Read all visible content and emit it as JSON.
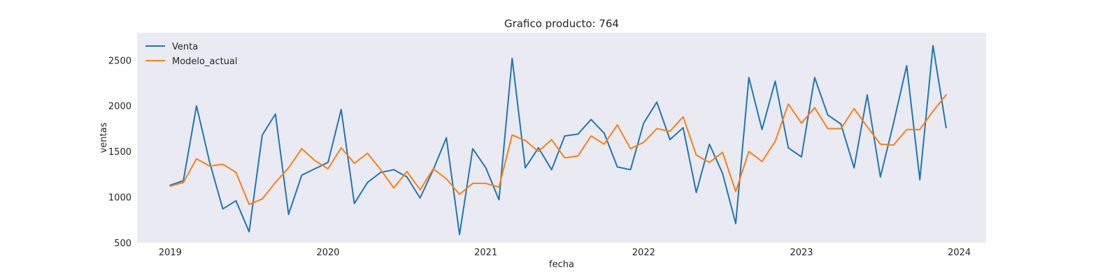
{
  "chart_data": {
    "type": "line",
    "title": "Grafico producto: 764",
    "xlabel": "fecha",
    "ylabel": "ventas",
    "x_start": "2019-01",
    "x_ticks": [
      {
        "year": 2019,
        "label": "2019"
      },
      {
        "year": 2020,
        "label": "2020"
      },
      {
        "year": 2021,
        "label": "2021"
      },
      {
        "year": 2022,
        "label": "2022"
      },
      {
        "year": 2023,
        "label": "2023"
      },
      {
        "year": 2024,
        "label": "2024"
      }
    ],
    "xlim": [
      2018.79,
      2024.17
    ],
    "ylim": [
      500,
      2800
    ],
    "y_ticks": [
      {
        "value": 500,
        "label": "500"
      },
      {
        "value": 1000,
        "label": "1000"
      },
      {
        "value": 1500,
        "label": "1500"
      },
      {
        "value": 2000,
        "label": "2000"
      },
      {
        "value": 2500,
        "label": "2500"
      }
    ],
    "legend_position": "top-left",
    "background": "#eaeaf2",
    "series": [
      {
        "name": "Venta",
        "color": "#1f77b4",
        "values": [
          1130,
          1180,
          2000,
          1380,
          870,
          960,
          620,
          1680,
          1910,
          810,
          1240,
          1310,
          1380,
          1960,
          930,
          1160,
          1270,
          1300,
          1220,
          990,
          1300,
          1650,
          590,
          1530,
          1320,
          970,
          2520,
          1320,
          1540,
          1300,
          1670,
          1690,
          1850,
          1700,
          1330,
          1300,
          1810,
          2040,
          1630,
          1760,
          1050,
          1580,
          1260,
          710,
          2310,
          1740,
          2270,
          1540,
          1440,
          2310,
          1900,
          1800,
          1320,
          2120,
          1220,
          1810,
          2440,
          1190,
          2660,
          1760
        ]
      },
      {
        "name": "Modelo_actual",
        "color": "#ff7f0e",
        "values": [
          1120,
          1160,
          1420,
          1340,
          1360,
          1270,
          920,
          980,
          1160,
          1320,
          1530,
          1400,
          1310,
          1540,
          1370,
          1480,
          1300,
          1100,
          1280,
          1080,
          1310,
          1200,
          1030,
          1150,
          1150,
          1110,
          1680,
          1620,
          1500,
          1630,
          1430,
          1450,
          1670,
          1580,
          1790,
          1530,
          1600,
          1750,
          1720,
          1880,
          1460,
          1380,
          1490,
          1060,
          1500,
          1390,
          1610,
          2020,
          1810,
          1980,
          1750,
          1750,
          1970,
          1770,
          1580,
          1570,
          1740,
          1740,
          1940,
          2120
        ]
      }
    ]
  }
}
